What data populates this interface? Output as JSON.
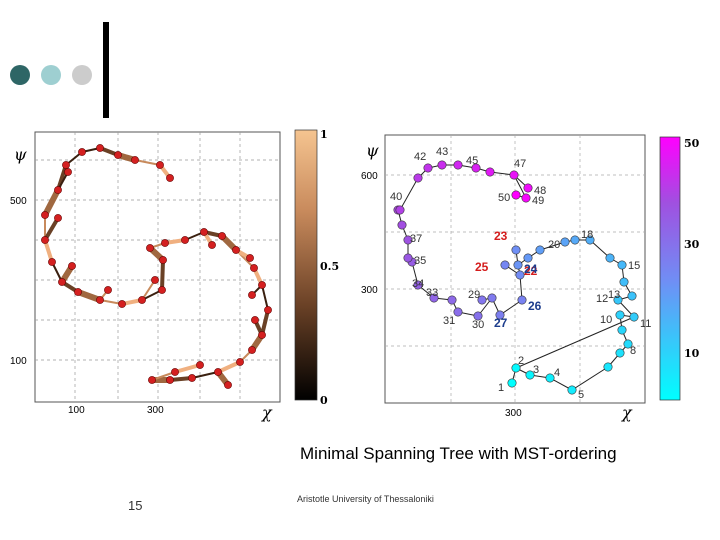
{
  "slide": {
    "caption": "Minimal Spanning Tree with MST-ordering",
    "page_number": "15",
    "footer": "Aristotle University of Thessaloniki",
    "decor_colors": [
      "#2e6666",
      "#9ecfd1",
      "#cccccc"
    ]
  },
  "chart_data": [
    {
      "type": "scatter",
      "title": "",
      "xlabel": "χ",
      "ylabel": "ψ",
      "xticks": [
        "100",
        "300"
      ],
      "yticks": [
        "500",
        "100"
      ],
      "colorbar": {
        "ticks": [
          "1",
          "0.5",
          "0"
        ],
        "colors": [
          "#000000",
          "#6a4126",
          "#c88a5c",
          "#f5c490"
        ]
      },
      "points_color": "#d42020",
      "segments": [
        [
          [
            82,
            152
          ],
          [
            100,
            148
          ]
        ],
        [
          [
            100,
            148
          ],
          [
            118,
            155
          ]
        ],
        [
          [
            118,
            155
          ],
          [
            135,
            160
          ]
        ],
        [
          [
            135,
            160
          ],
          [
            160,
            165
          ]
        ],
        [
          [
            160,
            165
          ],
          [
            170,
            178
          ]
        ],
        [
          [
            82,
            152
          ],
          [
            66,
            165
          ]
        ],
        [
          [
            66,
            165
          ],
          [
            58,
            190
          ]
        ],
        [
          [
            58,
            190
          ],
          [
            45,
            215
          ]
        ],
        [
          [
            45,
            215
          ],
          [
            45,
            240
          ]
        ],
        [
          [
            45,
            240
          ],
          [
            52,
            262
          ]
        ],
        [
          [
            52,
            262
          ],
          [
            62,
            282
          ]
        ],
        [
          [
            62,
            282
          ],
          [
            78,
            292
          ]
        ],
        [
          [
            78,
            292
          ],
          [
            100,
            300
          ]
        ],
        [
          [
            100,
            300
          ],
          [
            122,
            304
          ]
        ],
        [
          [
            122,
            304
          ],
          [
            142,
            300
          ]
        ],
        [
          [
            142,
            300
          ],
          [
            162,
            290
          ]
        ],
        [
          [
            162,
            290
          ],
          [
            163,
            260
          ]
        ],
        [
          [
            163,
            260
          ],
          [
            150,
            248
          ]
        ],
        [
          [
            150,
            248
          ],
          [
            165,
            243
          ]
        ],
        [
          [
            165,
            243
          ],
          [
            185,
            240
          ]
        ],
        [
          [
            185,
            240
          ],
          [
            204,
            232
          ]
        ],
        [
          [
            204,
            232
          ],
          [
            222,
            236
          ]
        ],
        [
          [
            222,
            236
          ],
          [
            236,
            250
          ]
        ],
        [
          [
            236,
            250
          ],
          [
            254,
            268
          ]
        ],
        [
          [
            254,
            268
          ],
          [
            262,
            285
          ]
        ],
        [
          [
            262,
            285
          ],
          [
            268,
            310
          ]
        ],
        [
          [
            268,
            310
          ],
          [
            262,
            335
          ]
        ],
        [
          [
            262,
            335
          ],
          [
            252,
            350
          ]
        ],
        [
          [
            252,
            350
          ],
          [
            240,
            362
          ]
        ],
        [
          [
            240,
            362
          ],
          [
            218,
            372
          ]
        ],
        [
          [
            218,
            372
          ],
          [
            192,
            378
          ]
        ],
        [
          [
            192,
            378
          ],
          [
            170,
            380
          ]
        ],
        [
          [
            170,
            380
          ],
          [
            152,
            380
          ]
        ],
        [
          [
            152,
            380
          ],
          [
            175,
            372
          ]
        ],
        [
          [
            175,
            372
          ],
          [
            200,
            365
          ]
        ],
        [
          [
            58,
            190
          ],
          [
            68,
            172
          ]
        ],
        [
          [
            45,
            240
          ],
          [
            58,
            218
          ]
        ],
        [
          [
            62,
            282
          ],
          [
            72,
            266
          ]
        ],
        [
          [
            142,
            300
          ],
          [
            155,
            280
          ]
        ],
        [
          [
            236,
            250
          ],
          [
            250,
            258
          ]
        ],
        [
          [
            262,
            285
          ],
          [
            252,
            295
          ]
        ],
        [
          [
            262,
            335
          ],
          [
            255,
            320
          ]
        ],
        [
          [
            218,
            372
          ],
          [
            228,
            385
          ]
        ],
        [
          [
            100,
            300
          ],
          [
            108,
            290
          ]
        ],
        [
          [
            204,
            232
          ],
          [
            212,
            245
          ]
        ]
      ]
    },
    {
      "type": "scatter",
      "title": "",
      "xlabel": "χ",
      "ylabel": "ψ",
      "xticks": [
        "300"
      ],
      "yticks": [
        "600",
        "300"
      ],
      "colorbar": {
        "ticks": [
          "50",
          "30",
          "10"
        ],
        "colors": [
          "#00ffff",
          "#6f8ff5",
          "#a050e0",
          "#ff00ff"
        ]
      },
      "points": [
        {
          "label": "1",
          "v": 1
        },
        {
          "label": "2",
          "v": 2
        },
        {
          "label": "3",
          "v": 3
        },
        {
          "label": "4",
          "v": 4
        },
        {
          "label": "5",
          "v": 5
        },
        {
          "label": "",
          "v": 6
        },
        {
          "label": "",
          "v": 7
        },
        {
          "label": "8",
          "v": 8
        },
        {
          "label": "",
          "v": 9
        },
        {
          "label": "10",
          "v": 10
        },
        {
          "label": "11",
          "v": 11
        },
        {
          "label": "12",
          "v": 12
        },
        {
          "label": "13",
          "v": 13
        },
        {
          "label": "",
          "v": 14
        },
        {
          "label": "15",
          "v": 15
        },
        {
          "label": "",
          "v": 16
        },
        {
          "label": "",
          "v": 17
        },
        {
          "label": "18",
          "v": 18
        },
        {
          "label": "",
          "v": 19
        },
        {
          "label": "20",
          "v": 20
        },
        {
          "label": "",
          "v": 21
        },
        {
          "label": "22",
          "v": 22
        },
        {
          "label": "23",
          "v": 23
        },
        {
          "label": "24",
          "v": 24
        },
        {
          "label": "25",
          "v": 25
        },
        {
          "label": "26",
          "v": 26
        },
        {
          "label": "27",
          "v": 27
        },
        {
          "label": "",
          "v": 28
        },
        {
          "label": "29",
          "v": 29
        },
        {
          "label": "30",
          "v": 30
        },
        {
          "label": "31",
          "v": 31
        },
        {
          "label": "",
          "v": 32
        },
        {
          "label": "33",
          "v": 33
        },
        {
          "label": "34",
          "v": 34
        },
        {
          "label": "35",
          "v": 35
        },
        {
          "label": "",
          "v": 36
        },
        {
          "label": "37",
          "v": 37
        },
        {
          "label": "",
          "v": 38
        },
        {
          "label": "",
          "v": 39
        },
        {
          "label": "40",
          "v": 40
        },
        {
          "label": "",
          "v": 41
        },
        {
          "label": "42",
          "v": 42
        },
        {
          "label": "43",
          "v": 43
        },
        {
          "label": "",
          "v": 44
        },
        {
          "label": "45",
          "v": 45
        },
        {
          "label": "",
          "v": 46
        },
        {
          "label": "47",
          "v": 47
        },
        {
          "label": "48",
          "v": 48
        },
        {
          "label": "49",
          "v": 49
        },
        {
          "label": "50",
          "v": 50
        }
      ],
      "mst_edges": [
        [
          1,
          2
        ],
        [
          2,
          3
        ],
        [
          3,
          4
        ],
        [
          4,
          5
        ],
        [
          5,
          6
        ],
        [
          6,
          7
        ],
        [
          7,
          8
        ],
        [
          8,
          9
        ],
        [
          9,
          10
        ],
        [
          10,
          11
        ],
        [
          11,
          12
        ],
        [
          12,
          13
        ],
        [
          13,
          14
        ],
        [
          14,
          15
        ],
        [
          15,
          16
        ],
        [
          16,
          17
        ],
        [
          17,
          18
        ],
        [
          18,
          19
        ],
        [
          19,
          20
        ],
        [
          20,
          21
        ],
        [
          21,
          22
        ],
        [
          22,
          23
        ],
        [
          22,
          24
        ],
        [
          24,
          25
        ],
        [
          24,
          26
        ],
        [
          26,
          27
        ],
        [
          27,
          28
        ],
        [
          28,
          29
        ],
        [
          28,
          30
        ],
        [
          30,
          31
        ],
        [
          31,
          32
        ],
        [
          32,
          33
        ],
        [
          33,
          34
        ],
        [
          34,
          35
        ],
        [
          35,
          36
        ],
        [
          36,
          37
        ],
        [
          37,
          38
        ],
        [
          38,
          39
        ],
        [
          39,
          40
        ],
        [
          40,
          41
        ],
        [
          41,
          42
        ],
        [
          42,
          43
        ],
        [
          43,
          44
        ],
        [
          44,
          45
        ],
        [
          45,
          46
        ],
        [
          46,
          47
        ],
        [
          47,
          48
        ],
        [
          47,
          49
        ],
        [
          49,
          50
        ],
        [
          2,
          11
        ]
      ]
    }
  ]
}
